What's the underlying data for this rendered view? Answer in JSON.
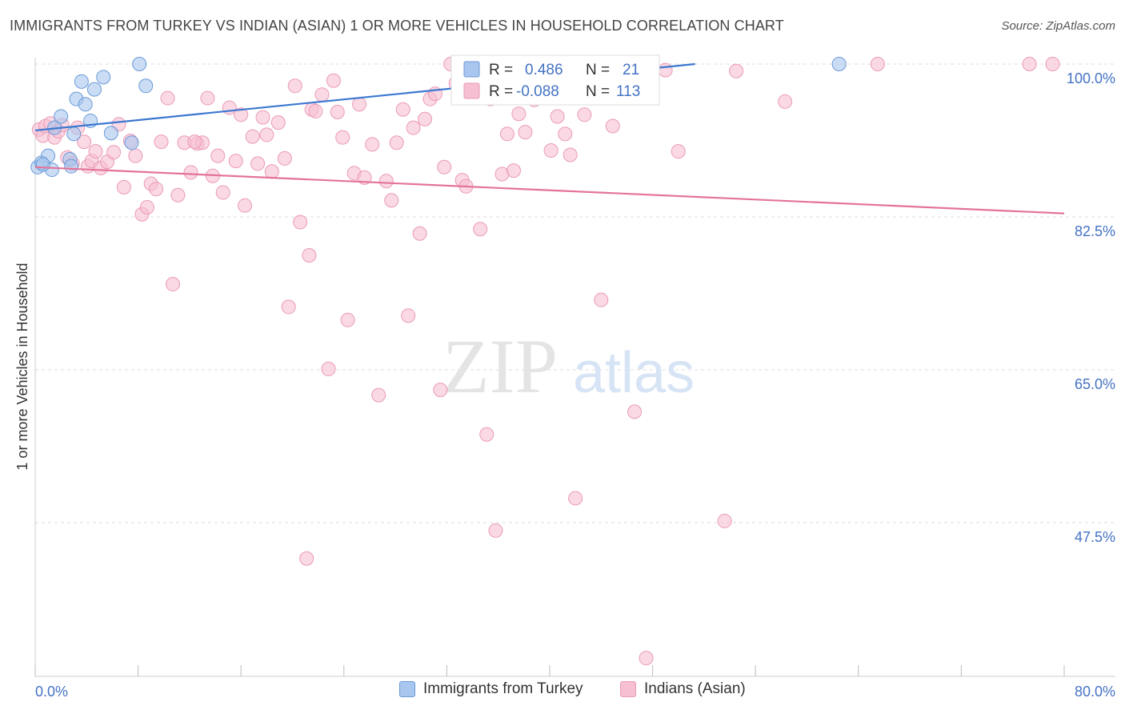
{
  "title": "IMMIGRANTS FROM TURKEY VS INDIAN (ASIAN) 1 OR MORE VEHICLES IN HOUSEHOLD CORRELATION CHART",
  "source": "Source: ZipAtlas.com",
  "watermark": {
    "zip": "ZIP",
    "atlas": "atlas"
  },
  "legend_top": {
    "r_label": "R =",
    "n_label": "N =",
    "rows": [
      {
        "r": "0.486",
        "n": "21"
      },
      {
        "r": "-0.088",
        "n": "113"
      }
    ]
  },
  "legend_bottom": [
    {
      "label": "Immigrants from Turkey"
    },
    {
      "label": "Indians (Asian)"
    }
  ],
  "colors": {
    "blue_fill": "#a8c6ee",
    "blue_stroke": "#6a9ad8",
    "blue_line": "#3b78d0",
    "pink_fill": "#f6bfd2",
    "pink_stroke": "#ea9ab7",
    "pink_line": "#e4739b",
    "tick_text": "#4472c4",
    "grid": "#dddddd"
  },
  "chart_data": {
    "type": "scatter",
    "title": "IMMIGRANTS FROM TURKEY VS INDIAN (ASIAN) 1 OR MORE VEHICLES IN HOUSEHOLD CORRELATION CHART",
    "xlabel": "",
    "ylabel": "1 or more Vehicles in Household",
    "xlim": [
      0,
      80
    ],
    "ylim": [
      31.5,
      102
    ],
    "x_tick_labels": [
      "0.0%",
      "80.0%"
    ],
    "y_ticks": [
      100,
      82.5,
      65,
      47.5
    ],
    "y_tick_labels": [
      "100.0%",
      "82.5%",
      "65.0%",
      "47.5%"
    ],
    "grid": true,
    "legend_position": "top-center",
    "series": [
      {
        "name": "Immigrants from Turkey",
        "points": [
          [
            0.2,
            88.2
          ],
          [
            0.5,
            88.7
          ],
          [
            1.0,
            89.5
          ],
          [
            1.3,
            87.9
          ],
          [
            1.5,
            92.7
          ],
          [
            2.0,
            94.0
          ],
          [
            2.7,
            89.1
          ],
          [
            2.8,
            88.3
          ],
          [
            3.0,
            92.0
          ],
          [
            3.2,
            96.0
          ],
          [
            3.6,
            98.0
          ],
          [
            3.9,
            95.4
          ],
          [
            4.3,
            93.5
          ],
          [
            4.6,
            97.1
          ],
          [
            5.3,
            98.5
          ],
          [
            5.9,
            92.1
          ],
          [
            7.5,
            91.0
          ],
          [
            8.1,
            100.0
          ],
          [
            8.6,
            97.5
          ],
          [
            62.5,
            100.0
          ],
          [
            0.6,
            88.5
          ]
        ],
        "trend": [
          [
            0,
            92.4
          ],
          [
            51.3,
            100.0
          ]
        ]
      },
      {
        "name": "Indians (Asian)",
        "points": [
          [
            0.3,
            92.5
          ],
          [
            0.6,
            91.8
          ],
          [
            0.8,
            92.9
          ],
          [
            1.2,
            93.2
          ],
          [
            1.5,
            91.6
          ],
          [
            1.8,
            92.3
          ],
          [
            2.1,
            93.0
          ],
          [
            2.5,
            89.3
          ],
          [
            2.9,
            88.6
          ],
          [
            3.3,
            92.7
          ],
          [
            3.8,
            91.1
          ],
          [
            4.1,
            88.3
          ],
          [
            4.4,
            88.9
          ],
          [
            4.7,
            90.0
          ],
          [
            5.1,
            88.1
          ],
          [
            5.6,
            88.8
          ],
          [
            6.1,
            89.9
          ],
          [
            6.5,
            93.1
          ],
          [
            6.9,
            85.9
          ],
          [
            7.4,
            91.2
          ],
          [
            7.8,
            89.5
          ],
          [
            8.3,
            82.8
          ],
          [
            8.7,
            83.6
          ],
          [
            9.0,
            86.3
          ],
          [
            9.4,
            85.7
          ],
          [
            9.8,
            91.1
          ],
          [
            10.3,
            96.1
          ],
          [
            10.7,
            74.8
          ],
          [
            11.1,
            85.0
          ],
          [
            11.6,
            91.0
          ],
          [
            12.1,
            87.6
          ],
          [
            12.6,
            90.9
          ],
          [
            13.0,
            91.0
          ],
          [
            13.4,
            96.1
          ],
          [
            13.8,
            87.2
          ],
          [
            14.2,
            89.5
          ],
          [
            14.6,
            85.3
          ],
          [
            15.1,
            95.0
          ],
          [
            15.6,
            88.9
          ],
          [
            16.0,
            94.2
          ],
          [
            16.3,
            83.8
          ],
          [
            16.9,
            91.7
          ],
          [
            17.3,
            88.6
          ],
          [
            17.7,
            93.9
          ],
          [
            18.0,
            91.9
          ],
          [
            18.4,
            87.7
          ],
          [
            18.9,
            93.3
          ],
          [
            19.4,
            89.2
          ],
          [
            19.7,
            72.2
          ],
          [
            20.2,
            97.5
          ],
          [
            20.6,
            81.9
          ],
          [
            21.1,
            43.4
          ],
          [
            21.3,
            78.1
          ],
          [
            21.5,
            94.8
          ],
          [
            21.8,
            94.6
          ],
          [
            22.3,
            96.5
          ],
          [
            22.8,
            65.1
          ],
          [
            23.2,
            98.1
          ],
          [
            23.5,
            94.5
          ],
          [
            23.9,
            91.6
          ],
          [
            24.3,
            70.7
          ],
          [
            24.8,
            87.5
          ],
          [
            25.2,
            95.4
          ],
          [
            25.6,
            87.0
          ],
          [
            26.2,
            90.8
          ],
          [
            26.7,
            62.1
          ],
          [
            27.3,
            86.6
          ],
          [
            27.7,
            84.4
          ],
          [
            28.1,
            91.0
          ],
          [
            28.6,
            94.8
          ],
          [
            29.0,
            71.2
          ],
          [
            29.4,
            92.7
          ],
          [
            29.9,
            80.6
          ],
          [
            30.3,
            93.7
          ],
          [
            30.7,
            96.0
          ],
          [
            31.1,
            96.6
          ],
          [
            31.5,
            62.7
          ],
          [
            31.8,
            88.2
          ],
          [
            32.3,
            100.0
          ],
          [
            32.7,
            97.8
          ],
          [
            33.2,
            86.7
          ],
          [
            33.5,
            86.0
          ],
          [
            34.2,
            99.5
          ],
          [
            34.6,
            81.1
          ],
          [
            35.1,
            57.6
          ],
          [
            35.4,
            96.0
          ],
          [
            35.8,
            46.6
          ],
          [
            36.3,
            87.4
          ],
          [
            36.7,
            92.0
          ],
          [
            37.2,
            87.8
          ],
          [
            37.6,
            94.3
          ],
          [
            38.1,
            92.2
          ],
          [
            38.8,
            95.9
          ],
          [
            39.4,
            100.0
          ],
          [
            40.1,
            90.1
          ],
          [
            40.6,
            94.0
          ],
          [
            41.2,
            92.0
          ],
          [
            41.6,
            89.6
          ],
          [
            42.0,
            50.3
          ],
          [
            42.7,
            94.2
          ],
          [
            44.0,
            73.0
          ],
          [
            44.9,
            92.9
          ],
          [
            46.6,
            60.2
          ],
          [
            47.5,
            32.0
          ],
          [
            49.0,
            99.3
          ],
          [
            50.0,
            90.0
          ],
          [
            53.6,
            47.7
          ],
          [
            54.5,
            99.2
          ],
          [
            58.3,
            95.7
          ],
          [
            65.5,
            100.0
          ],
          [
            77.3,
            100.0
          ],
          [
            79.1,
            100.0
          ],
          [
            12.4,
            91.1
          ]
        ],
        "trend": [
          [
            0,
            88.2
          ],
          [
            80,
            82.9
          ]
        ]
      }
    ]
  }
}
